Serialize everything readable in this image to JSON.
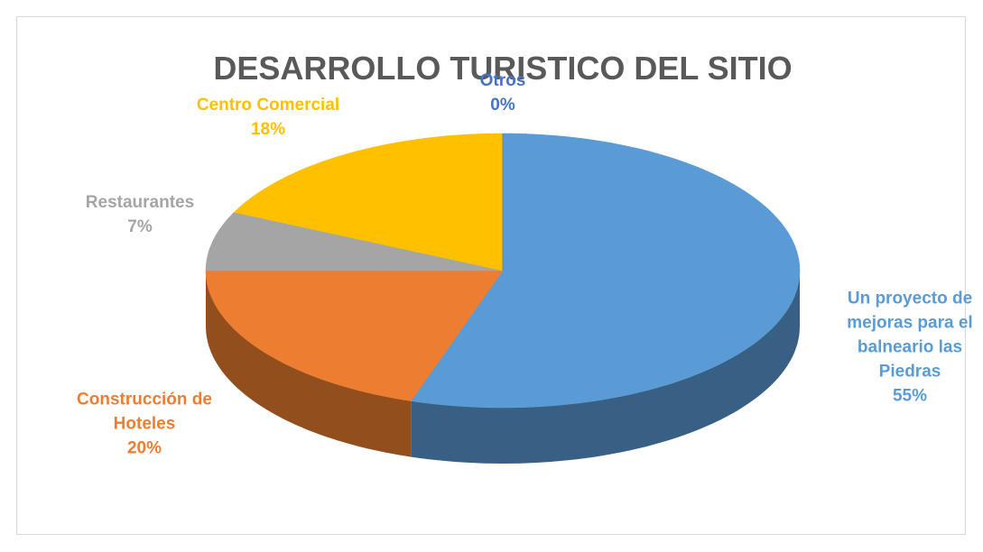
{
  "chart_data": {
    "type": "pie",
    "title": "DESARROLLO TURISTICO DEL SITIO",
    "categories": [
      "Un proyecto de mejoras para el balneario las Piedras",
      "Construcción de Hoteles",
      "Restaurantes",
      "Centro Comercial",
      "Otros"
    ],
    "values": [
      55,
      20,
      7,
      18,
      0
    ],
    "value_labels": [
      "55%",
      "20%",
      "7%",
      "18%",
      "0%"
    ],
    "colors": [
      "#5b9bd5",
      "#ed7d31",
      "#a5a5a5",
      "#ffc000",
      "#4472c4"
    ]
  }
}
